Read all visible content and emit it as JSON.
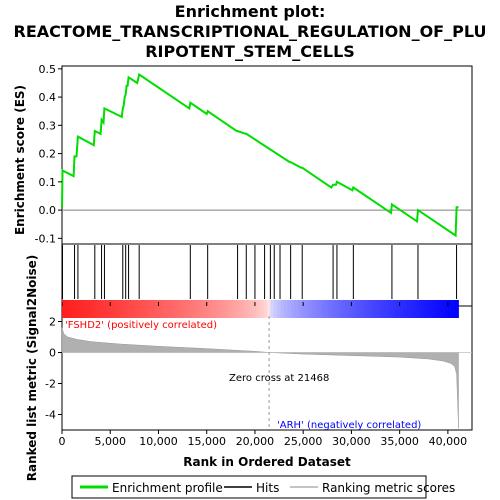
{
  "chart_data": {
    "type": "line",
    "title_lines": [
      "Enrichment plot:",
      "REACTOME_TRANSCRIPTIONAL_REGULATION_OF_PLU",
      "RIPOTENT_STEM_CELLS"
    ],
    "es_panel": {
      "ylabel": "Enrichment score (ES)",
      "ylim": [
        -0.12,
        0.51
      ],
      "yticks": [
        -0.1,
        0.0,
        0.1,
        0.2,
        0.3,
        0.4,
        0.5
      ],
      "ytick_labels": [
        "-0.1",
        "0.0",
        "0.1",
        "0.2",
        "0.3",
        "0.4",
        "0.5"
      ],
      "series": {
        "name": "Enrichment profile",
        "color": "#00dd00",
        "x": [
          0,
          50,
          1200,
          1300,
          1500,
          1650,
          3300,
          3400,
          4000,
          4100,
          4300,
          4400,
          6200,
          6300,
          6400,
          6500,
          6600,
          6700,
          6800,
          6900,
          7800,
          8000,
          13200,
          13300,
          15000,
          15100,
          18100,
          18200,
          19000,
          19100,
          23600,
          23700,
          24800,
          24900,
          27900,
          28100,
          28400,
          28500,
          30100,
          30200,
          34100,
          34200,
          36800,
          36900,
          40800,
          40900,
          41100
        ],
        "y": [
          0.01,
          0.14,
          0.12,
          0.19,
          0.19,
          0.26,
          0.23,
          0.28,
          0.27,
          0.32,
          0.31,
          0.36,
          0.33,
          0.36,
          0.37,
          0.4,
          0.41,
          0.44,
          0.44,
          0.47,
          0.45,
          0.48,
          0.36,
          0.38,
          0.34,
          0.35,
          0.28,
          0.28,
          0.27,
          0.27,
          0.17,
          0.17,
          0.15,
          0.15,
          0.08,
          0.09,
          0.09,
          0.1,
          0.07,
          0.08,
          -0.01,
          0.02,
          -0.04,
          0.0,
          -0.09,
          0.01,
          0.01
        ]
      },
      "zero_line": 0.0
    },
    "hits": {
      "name": "Hits",
      "x": [
        50,
        1300,
        1650,
        3400,
        4100,
        4400,
        6300,
        6600,
        6900,
        8000,
        13300,
        15100,
        18200,
        19100,
        20000,
        21000,
        21600,
        22000,
        22600,
        23700,
        24900,
        28100,
        28500,
        30200,
        34200,
        36900,
        40900
      ]
    },
    "ranked_metric": {
      "name": "Ranking metric scores",
      "ylabel": "Ranked list metric (Signal2Noise)",
      "ylim": [
        -5,
        3
      ],
      "yticks": [
        -4,
        -2,
        0,
        2
      ],
      "ytick_labels": [
        "-4",
        "-2",
        "0",
        "2"
      ],
      "profile_x": [
        0,
        200,
        600,
        1500,
        3000,
        6000,
        10000,
        15000,
        20000,
        21468,
        25000,
        30000,
        35000,
        38000,
        39500,
        40300,
        40700,
        40900,
        41000,
        41100
      ],
      "profile_y": [
        1.6,
        1.2,
        1.0,
        0.85,
        0.7,
        0.55,
        0.4,
        0.25,
        0.08,
        0.0,
        -0.1,
        -0.2,
        -0.3,
        -0.42,
        -0.55,
        -0.7,
        -0.9,
        -1.4,
        -3.0,
        -4.9
      ],
      "positive_label": "'FSHD2' (positively correlated)",
      "negative_label": "'ARH' (negatively correlated)",
      "zero_cross_label": "Zero cross at 21468",
      "zero_cross": 21468,
      "positive_color": "#ff0000",
      "negative_color": "#0000ff",
      "profile_color": "#b0b0b0"
    },
    "x_axis": {
      "label": "Rank in Ordered Dataset",
      "xlim": [
        0,
        42500
      ],
      "xticks": [
        0,
        5000,
        10000,
        15000,
        20000,
        25000,
        30000,
        35000,
        40000
      ],
      "xtick_labels": [
        "0",
        "5,000",
        "10,000",
        "15,000",
        "20,000",
        "25,000",
        "30,000",
        "35,000",
        "40,000"
      ]
    },
    "legend": {
      "placement": "bottom",
      "entries": [
        {
          "label": "Enrichment profile",
          "color": "#00dd00"
        },
        {
          "label": "Hits",
          "color": "#000000"
        },
        {
          "label": "Ranking metric scores",
          "color": "#b0b0b0"
        }
      ]
    }
  }
}
